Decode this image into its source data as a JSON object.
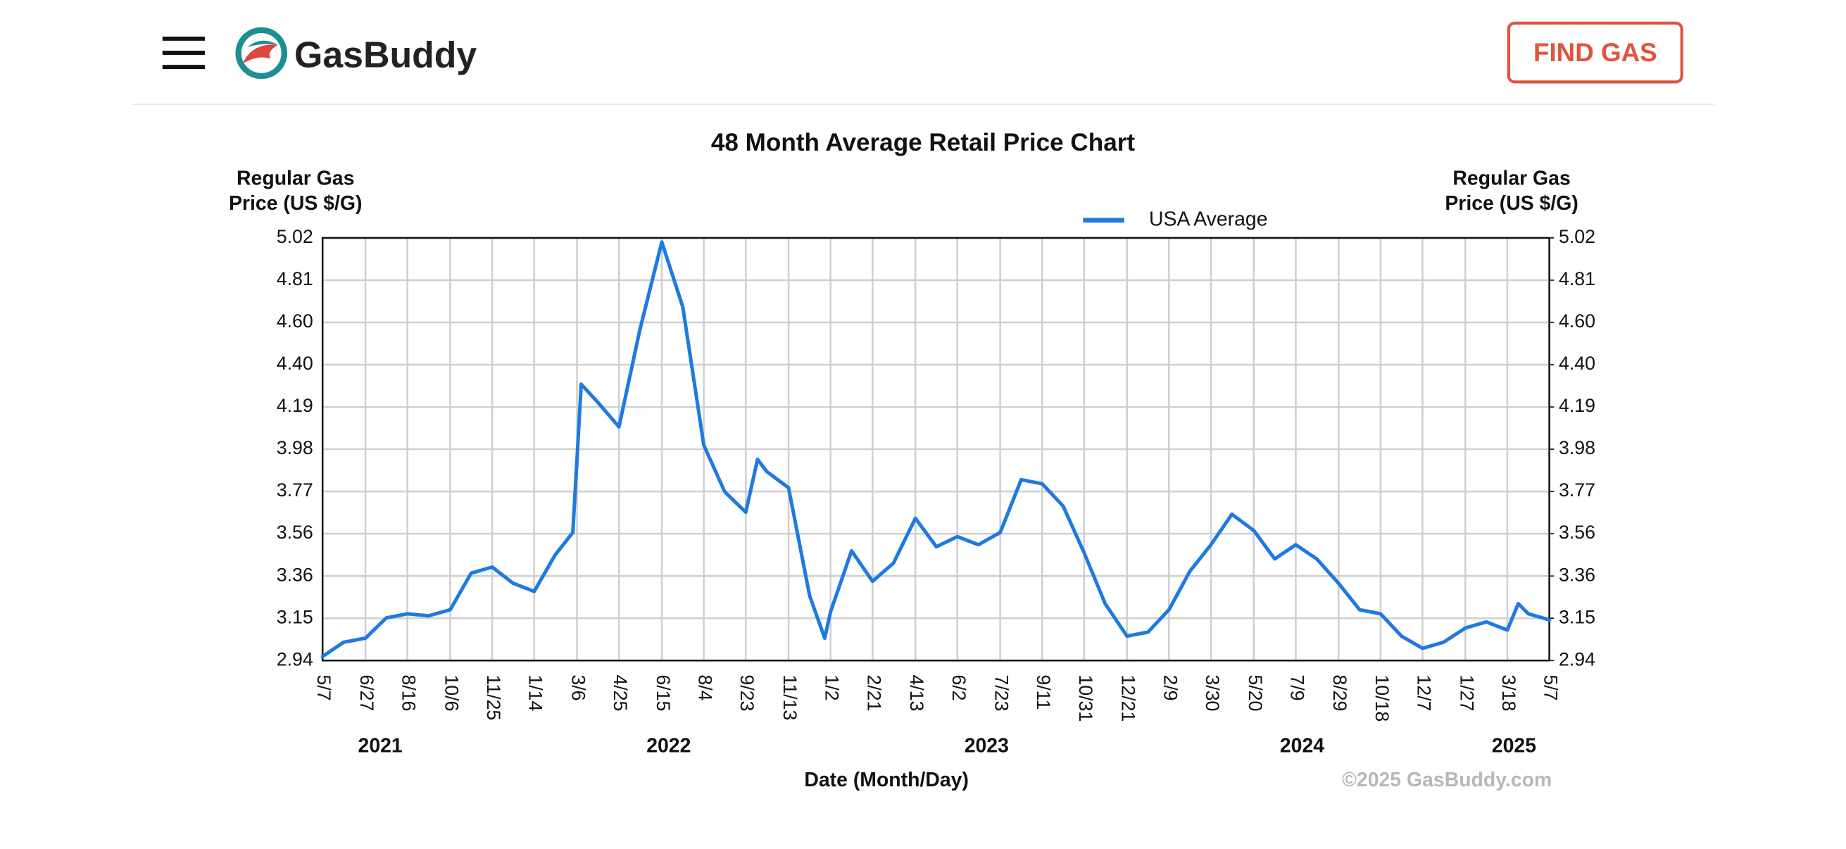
{
  "header": {
    "logo": "GasBuddy",
    "button": "FIND GAS"
  },
  "chart_data": {
    "type": "line",
    "title": "48 Month Average Retail Price Chart",
    "y_label": [
      "Regular Gas",
      "Price (US $/G)"
    ],
    "y2_label": [
      "Regular Gas",
      "Price (US $/G)"
    ],
    "x_label": "Date (Month/Day)",
    "credit": "©2025 GasBuddy.com",
    "years": [
      "2021",
      "2022",
      "2023",
      "2024",
      "2025"
    ],
    "legend": "top",
    "grid": true,
    "xlim": [
      "2021-05-07",
      "2025-05-07"
    ],
    "xticks": [
      {
        "value": "2021-05-07",
        "label": "5/7"
      },
      {
        "value": "2021-06-27",
        "label": "6/27"
      },
      {
        "value": "2021-08-16",
        "label": "8/16"
      },
      {
        "value": "2021-10-06",
        "label": "10/6"
      },
      {
        "value": "2021-11-25",
        "label": "11/25"
      },
      {
        "value": "2022-01-14",
        "label": "1/14"
      },
      {
        "value": "2022-03-06",
        "label": "3/6"
      },
      {
        "value": "2022-04-25",
        "label": "4/25"
      },
      {
        "value": "2022-06-15",
        "label": "6/15"
      },
      {
        "value": "2022-08-04",
        "label": "8/4"
      },
      {
        "value": "2022-09-23",
        "label": "9/23"
      },
      {
        "value": "2022-11-13",
        "label": "11/13"
      },
      {
        "value": "2023-01-02",
        "label": "1/2"
      },
      {
        "value": "2023-02-21",
        "label": "2/21"
      },
      {
        "value": "2023-04-13",
        "label": "4/13"
      },
      {
        "value": "2023-06-02",
        "label": "6/2"
      },
      {
        "value": "2023-07-23",
        "label": "7/23"
      },
      {
        "value": "2023-09-11",
        "label": "9/11"
      },
      {
        "value": "2023-10-31",
        "label": "10/31"
      },
      {
        "value": "2023-12-21",
        "label": "12/21"
      },
      {
        "value": "2024-02-09",
        "label": "2/9"
      },
      {
        "value": "2024-03-30",
        "label": "3/30"
      },
      {
        "value": "2024-05-20",
        "label": "5/20"
      },
      {
        "value": "2024-07-09",
        "label": "7/9"
      },
      {
        "value": "2024-08-29",
        "label": "8/29"
      },
      {
        "value": "2024-10-18",
        "label": "10/18"
      },
      {
        "value": "2024-12-07",
        "label": "12/7"
      },
      {
        "value": "2025-01-27",
        "label": "1/27"
      },
      {
        "value": "2025-03-18",
        "label": "3/18"
      },
      {
        "value": "2025-05-07",
        "label": "5/7"
      }
    ],
    "ylim": [
      2.94,
      5.02
    ],
    "yticks": [
      2.94,
      {
        "value": 3.148,
        "label": "3.15"
      },
      {
        "value": 3.356,
        "label": "3.36"
      },
      {
        "value": 3.564,
        "label": "3.56"
      },
      {
        "value": 3.772,
        "label": "3.77"
      },
      3.98,
      {
        "value": 4.188,
        "label": "4.19"
      },
      {
        "value": 4.396,
        "label": "4.40"
      },
      {
        "value": 4.604,
        "label": "4.60"
      },
      {
        "value": 4.812,
        "label": "4.81"
      },
      5.02
    ],
    "y2lim": [
      2.94,
      5.02
    ],
    "y2ticks": [
      2.94,
      {
        "value": 3.148,
        "label": "3.15"
      },
      {
        "value": 3.356,
        "label": "3.36"
      },
      {
        "value": 3.564,
        "label": "3.56"
      },
      {
        "value": 3.772,
        "label": "3.77"
      },
      3.98,
      {
        "value": 4.188,
        "label": "4.19"
      },
      {
        "value": 4.396,
        "label": "4.40"
      },
      {
        "value": 4.604,
        "label": "4.60"
      },
      {
        "value": 4.812,
        "label": "4.81"
      },
      5.02
    ],
    "x": [
      "2021-05-07",
      "2021-06-01",
      "2021-06-27",
      "2021-07-22",
      "2021-08-16",
      "2021-09-10",
      "2021-10-06",
      "2021-10-31",
      "2021-11-25",
      "2021-12-20",
      "2022-01-14",
      "2022-02-08",
      "2022-03-01",
      "2022-03-06",
      "2022-03-11",
      "2022-03-31",
      "2022-04-25",
      "2022-05-20",
      "2022-06-15",
      "2022-07-10",
      "2022-08-04",
      "2022-08-29",
      "2022-09-23",
      "2022-10-07",
      "2022-10-18",
      "2022-11-13",
      "2022-12-08",
      "2022-12-26",
      "2023-01-02",
      "2023-01-27",
      "2023-02-21",
      "2023-03-18",
      "2023-04-13",
      "2023-05-08",
      "2023-06-02",
      "2023-06-27",
      "2023-07-23",
      "2023-08-17",
      "2023-09-11",
      "2023-10-06",
      "2023-10-31",
      "2023-11-25",
      "2023-12-21",
      "2024-01-15",
      "2024-02-09",
      "2024-03-05",
      "2024-03-30",
      "2024-04-24",
      "2024-05-20",
      "2024-06-14",
      "2024-07-09",
      "2024-08-03",
      "2024-08-29",
      "2024-09-23",
      "2024-10-18",
      "2024-11-12",
      "2024-12-07",
      "2025-01-01",
      "2025-01-27",
      "2025-02-21",
      "2025-03-18",
      "2025-03-31",
      "2025-04-12",
      "2025-05-07"
    ],
    "series": [
      {
        "name": "USA Average",
        "color": "#1f7ae0",
        "values": [
          2.96,
          3.03,
          3.05,
          3.15,
          3.17,
          3.16,
          3.19,
          3.37,
          3.4,
          3.32,
          3.28,
          3.46,
          3.57,
          3.93,
          4.3,
          4.21,
          4.09,
          4.57,
          5.0,
          4.68,
          4.0,
          3.77,
          3.67,
          3.93,
          3.87,
          3.79,
          3.26,
          3.05,
          3.18,
          3.48,
          3.33,
          3.42,
          3.64,
          3.5,
          3.55,
          3.51,
          3.57,
          3.83,
          3.81,
          3.7,
          3.47,
          3.22,
          3.06,
          3.08,
          3.19,
          3.38,
          3.51,
          3.66,
          3.58,
          3.44,
          3.51,
          3.44,
          3.32,
          3.19,
          3.17,
          3.06,
          3.0,
          3.03,
          3.1,
          3.13,
          3.09,
          3.22,
          3.17,
          3.14
        ]
      }
    ]
  }
}
